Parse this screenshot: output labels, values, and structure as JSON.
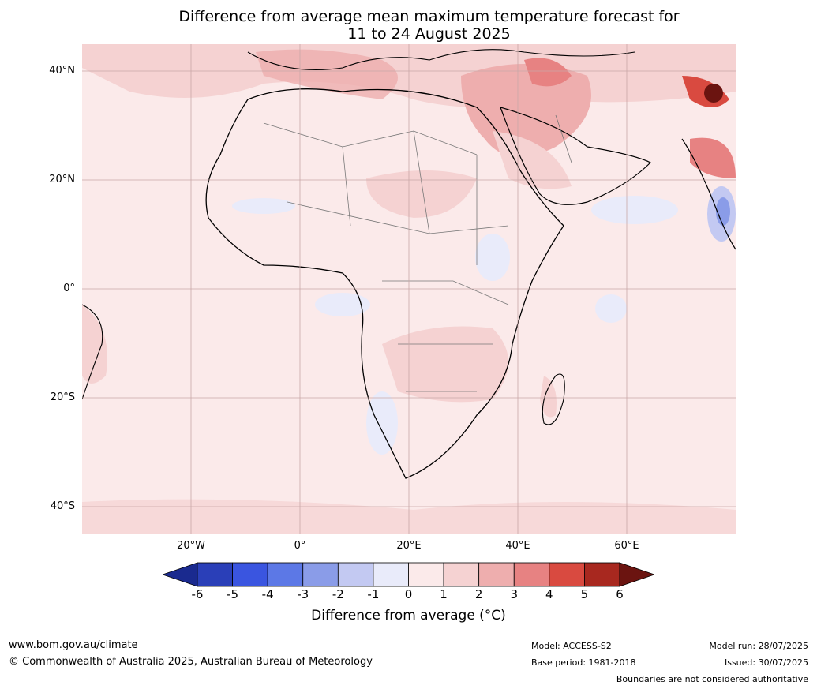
{
  "title_line1": "Difference from average mean maximum temperature forecast for",
  "title_line2": "11 to 24 August 2025",
  "latitude_labels": [
    "40°N",
    "20°N",
    "0°",
    "20°S",
    "40°S"
  ],
  "longitude_labels": [
    "20°W",
    "0°",
    "20°E",
    "40°E",
    "60°E"
  ],
  "colorbar": {
    "label": "Difference from average ($^\\circ$C)",
    "label_display": "Difference from average (°C)",
    "ticks": [
      "-6",
      "-5",
      "-4",
      "-3",
      "-2",
      "-1",
      "0",
      "1",
      "2",
      "3",
      "4",
      "5",
      "6"
    ],
    "colors": [
      "#1a2a8f",
      "#2a3fb8",
      "#3a55e0",
      "#5c78e6",
      "#8a9ce8",
      "#c3c9f2",
      "#e9ebfa",
      "#fbeaea",
      "#f5d2d2",
      "#eeaeae",
      "#e78282",
      "#d94a40",
      "#a8281f",
      "#6b1410"
    ]
  },
  "footer": {
    "website": "www.bom.gov.au/climate",
    "copyright": "© Commonwealth of Australia 2025, Australian Bureau of Meteorology",
    "model": "Model: ACCESS-S2",
    "base_period": "Base period: 1981-2018",
    "model_run": "Model run: 28/07/2025",
    "issued": "Issued: 30/07/2025",
    "disclaimer": "Boundaries are not considered authoritative"
  }
}
